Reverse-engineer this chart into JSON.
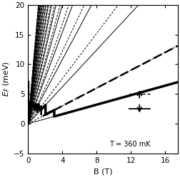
{
  "xlabel": "B (T)",
  "ylabel": "$E_F$ (meV)",
  "xlim": [
    0,
    17.5
  ],
  "ylim": [
    -5,
    20
  ],
  "xticks": [
    0,
    4,
    8,
    12,
    16
  ],
  "yticks": [
    -5,
    0,
    5,
    10,
    15,
    20
  ],
  "T_label": "T = 360 mK",
  "EF0": 7.0,
  "hbar_wc_per_T": 1.15,
  "g_muB_per_T": 0.35,
  "n_max": 14,
  "B_max": 17.5,
  "figsize": [
    2.52,
    2.49
  ],
  "dpi": 100
}
